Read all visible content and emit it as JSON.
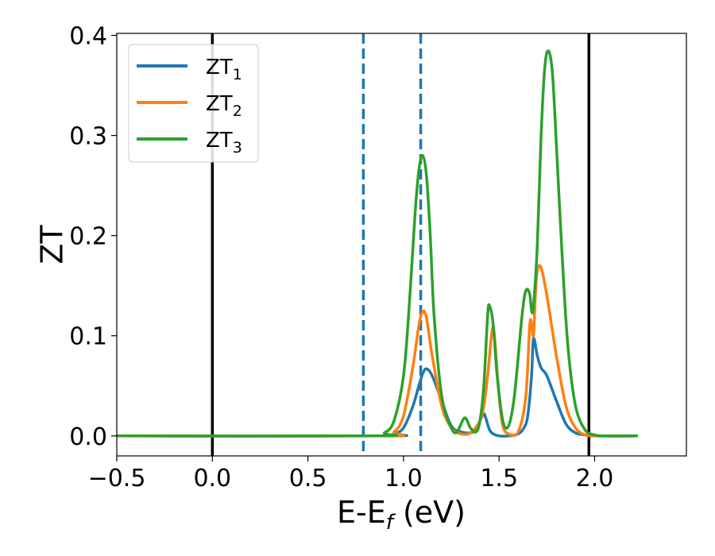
{
  "chart_data": {
    "type": "line",
    "xlabel": "E-E",
    "xlabel_subscript": "f",
    "xlabel_unit": " (eV)",
    "ylabel": "ZT",
    "xlim": [
      -0.5,
      2.48
    ],
    "ylim": [
      -0.02,
      0.402
    ],
    "xticks": [
      -0.5,
      0.0,
      0.5,
      1.0,
      1.5,
      2.0
    ],
    "xtick_labels": [
      "−0.5",
      "0.0",
      "0.5",
      "1.0",
      "1.5",
      "2.0"
    ],
    "yticks": [
      0.0,
      0.1,
      0.2,
      0.3,
      0.4
    ],
    "ytick_labels": [
      "0.0",
      "0.1",
      "0.2",
      "0.3",
      "0.4"
    ],
    "grid": false,
    "legend_position": "top-left",
    "vlines": [
      {
        "x": 0.0,
        "style": "solid",
        "color": "#000000"
      },
      {
        "x": 1.97,
        "style": "solid",
        "color": "#000000"
      },
      {
        "x": 0.79,
        "style": "dashed",
        "color": "#1f77b4"
      },
      {
        "x": 1.09,
        "style": "dashed",
        "color": "#1f77b4"
      }
    ],
    "series": [
      {
        "name": "ZT",
        "name_subscript": "1",
        "color": "#1f77b4",
        "x": [
          -0.5,
          0.9,
          0.95,
          1.0,
          1.05,
          1.08,
          1.1,
          1.12,
          1.15,
          1.2,
          1.25,
          1.3,
          1.35,
          1.38,
          1.4,
          1.42,
          1.43,
          1.45,
          1.47,
          1.5,
          1.55,
          1.6,
          1.63,
          1.65,
          1.67,
          1.68,
          1.7,
          1.72,
          1.75,
          1.8,
          1.85,
          1.9,
          1.95,
          2.0,
          2.22
        ],
        "y": [
          0.0,
          0.0,
          0.002,
          0.008,
          0.03,
          0.05,
          0.062,
          0.067,
          0.06,
          0.035,
          0.01,
          0.004,
          0.003,
          0.006,
          0.015,
          0.022,
          0.018,
          0.006,
          0.002,
          0.0,
          0.0,
          0.002,
          0.008,
          0.02,
          0.06,
          0.097,
          0.08,
          0.068,
          0.06,
          0.035,
          0.012,
          0.003,
          0.001,
          0.0,
          0.0
        ]
      },
      {
        "name": "ZT",
        "name_subscript": "2",
        "color": "#ff7f0e",
        "x": [
          -0.5,
          0.88,
          0.95,
          1.0,
          1.05,
          1.08,
          1.1,
          1.12,
          1.15,
          1.2,
          1.25,
          1.3,
          1.35,
          1.4,
          1.42,
          1.44,
          1.46,
          1.47,
          1.48,
          1.5,
          1.52,
          1.55,
          1.6,
          1.64,
          1.66,
          1.67,
          1.68,
          1.69,
          1.7,
          1.72,
          1.75,
          1.8,
          1.85,
          1.9,
          1.95,
          2.0,
          2.22
        ],
        "y": [
          0.0,
          0.0,
          0.004,
          0.02,
          0.07,
          0.11,
          0.124,
          0.118,
          0.08,
          0.03,
          0.008,
          0.002,
          0.003,
          0.015,
          0.03,
          0.06,
          0.1,
          0.108,
          0.09,
          0.04,
          0.01,
          0.002,
          0.004,
          0.04,
          0.11,
          0.112,
          0.1,
          0.14,
          0.165,
          0.168,
          0.14,
          0.08,
          0.03,
          0.008,
          0.001,
          0.0,
          0.0
        ]
      },
      {
        "name": "ZT",
        "name_subscript": "3",
        "color": "#2ca02c",
        "x": [
          -0.5,
          0.85,
          0.9,
          0.95,
          1.0,
          1.03,
          1.06,
          1.08,
          1.1,
          1.12,
          1.14,
          1.16,
          1.2,
          1.25,
          1.28,
          1.32,
          1.35,
          1.38,
          1.4,
          1.42,
          1.44,
          1.45,
          1.47,
          1.49,
          1.52,
          1.55,
          1.58,
          1.62,
          1.64,
          1.66,
          1.67,
          1.68,
          1.7,
          1.72,
          1.74,
          1.76,
          1.78,
          1.8,
          1.83,
          1.86,
          1.9,
          1.95,
          2.0,
          2.05,
          2.22
        ],
        "y": [
          0.0,
          0.0,
          0.003,
          0.015,
          0.06,
          0.13,
          0.22,
          0.265,
          0.28,
          0.26,
          0.2,
          0.12,
          0.04,
          0.008,
          0.004,
          0.018,
          0.008,
          0.004,
          0.015,
          0.05,
          0.12,
          0.13,
          0.11,
          0.06,
          0.015,
          0.01,
          0.04,
          0.12,
          0.145,
          0.142,
          0.125,
          0.13,
          0.19,
          0.3,
          0.37,
          0.384,
          0.36,
          0.29,
          0.18,
          0.09,
          0.03,
          0.006,
          0.001,
          0.0,
          0.0
        ]
      }
    ]
  }
}
